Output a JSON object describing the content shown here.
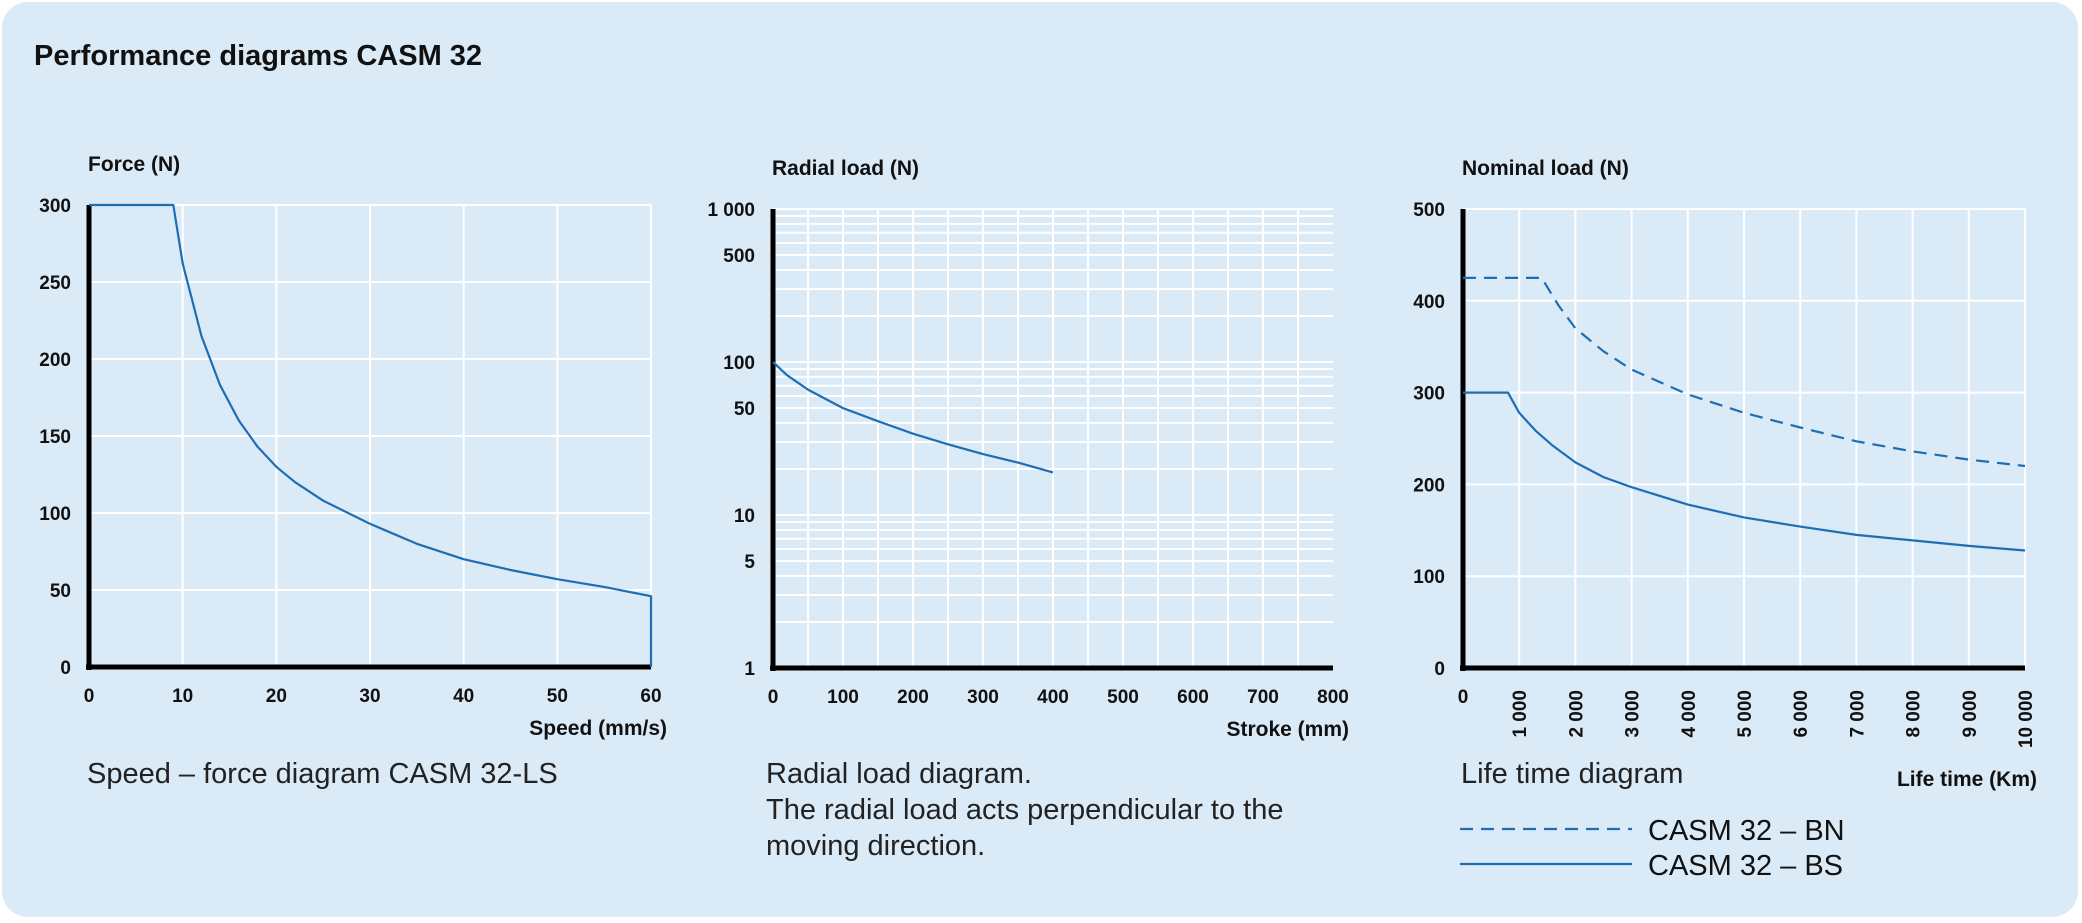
{
  "page_title": "Performance diagrams CASM 32",
  "colors": {
    "panel_background": "#daeaf6",
    "series": "#1f6db3",
    "axis": "#000000",
    "grid": "#ffffff"
  },
  "chart_data": [
    {
      "type": "line",
      "ylabel": "Force (N)",
      "xlabel": "Speed (mm/s)",
      "caption": [
        "Speed – force diagram CASM 32-LS"
      ],
      "xlim": [
        0,
        60
      ],
      "ylim": [
        0,
        300
      ],
      "x_ticks": [
        0,
        10,
        20,
        30,
        40,
        50,
        60
      ],
      "x_tick_labels": [
        "0",
        "10",
        "20",
        "30",
        "40",
        "50",
        "60"
      ],
      "y_ticks": [
        0,
        50,
        100,
        150,
        200,
        250,
        300
      ],
      "y_tick_labels": [
        "0",
        "50",
        "100",
        "150",
        "200",
        "250",
        "300"
      ],
      "grid": true,
      "series": [
        {
          "style": "solid",
          "x": [
            0,
            9,
            10,
            12,
            14,
            16,
            18,
            20,
            22,
            25,
            30,
            35,
            40,
            45,
            50,
            55,
            60,
            60
          ],
          "y": [
            300,
            300,
            262,
            215,
            183,
            160,
            143,
            130,
            120,
            108,
            93,
            80,
            70,
            63,
            57,
            52,
            46,
            0
          ]
        }
      ]
    },
    {
      "type": "line",
      "ylabel": "Radial load (N)",
      "xlabel": "Stroke (mm)",
      "caption": [
        "Radial load diagram.",
        "The radial load acts perpendicular to the",
        "moving direction."
      ],
      "xlim": [
        0,
        800
      ],
      "ylim": [
        1,
        1000
      ],
      "yscale": "log",
      "x_ticks": [
        0,
        100,
        200,
        300,
        400,
        500,
        600,
        700,
        800
      ],
      "x_tick_labels": [
        "0",
        "100",
        "200",
        "300",
        "400",
        "500",
        "600",
        "700",
        "800"
      ],
      "y_ticks": [
        1,
        5,
        10,
        50,
        100,
        500,
        1000
      ],
      "y_tick_labels": [
        "1",
        "5",
        "10",
        "50",
        "100",
        "500",
        "1 000"
      ],
      "grid": true,
      "series": [
        {
          "style": "solid",
          "x": [
            0,
            20,
            50,
            100,
            150,
            200,
            250,
            300,
            350,
            400
          ],
          "y": [
            100,
            82,
            66,
            50,
            41,
            34,
            29,
            25,
            22,
            19
          ]
        }
      ]
    },
    {
      "type": "line",
      "ylabel": "Nominal load (N)",
      "xlabel": "Life time (Km)",
      "caption": [
        "Life time diagram"
      ],
      "xlim": [
        0,
        10000
      ],
      "ylim": [
        0,
        500
      ],
      "x_ticks": [
        0,
        1000,
        2000,
        3000,
        4000,
        5000,
        6000,
        7000,
        8000,
        9000,
        10000
      ],
      "x_tick_labels": [
        "0",
        "1 000",
        "2 000",
        "3 000",
        "4 000",
        "5 000",
        "6 000",
        "7 000",
        "8 000",
        "9 000",
        "10 000"
      ],
      "y_ticks": [
        0,
        100,
        200,
        300,
        400,
        500
      ],
      "y_tick_labels": [
        "0",
        "100",
        "200",
        "300",
        "400",
        "500"
      ],
      "grid": true,
      "legend": [
        {
          "name": "CASM 32 – BN",
          "style": "dashed"
        },
        {
          "name": "CASM 32 – BS",
          "style": "solid"
        }
      ],
      "series": [
        {
          "name": "CASM 32 – BN",
          "style": "dashed",
          "x": [
            0,
            1400,
            1700,
            2000,
            2500,
            3000,
            4000,
            5000,
            6000,
            7000,
            8000,
            9000,
            10000
          ],
          "y": [
            425,
            425,
            395,
            370,
            345,
            325,
            298,
            278,
            262,
            247,
            236,
            227,
            220
          ]
        },
        {
          "name": "CASM 32 – BS",
          "style": "solid",
          "x": [
            0,
            800,
            1000,
            1300,
            1600,
            2000,
            2500,
            3000,
            4000,
            5000,
            6000,
            7000,
            8000,
            9000,
            10000
          ],
          "y": [
            300,
            300,
            278,
            258,
            242,
            224,
            208,
            197,
            178,
            164,
            154,
            145,
            139,
            133,
            128
          ]
        }
      ]
    }
  ]
}
